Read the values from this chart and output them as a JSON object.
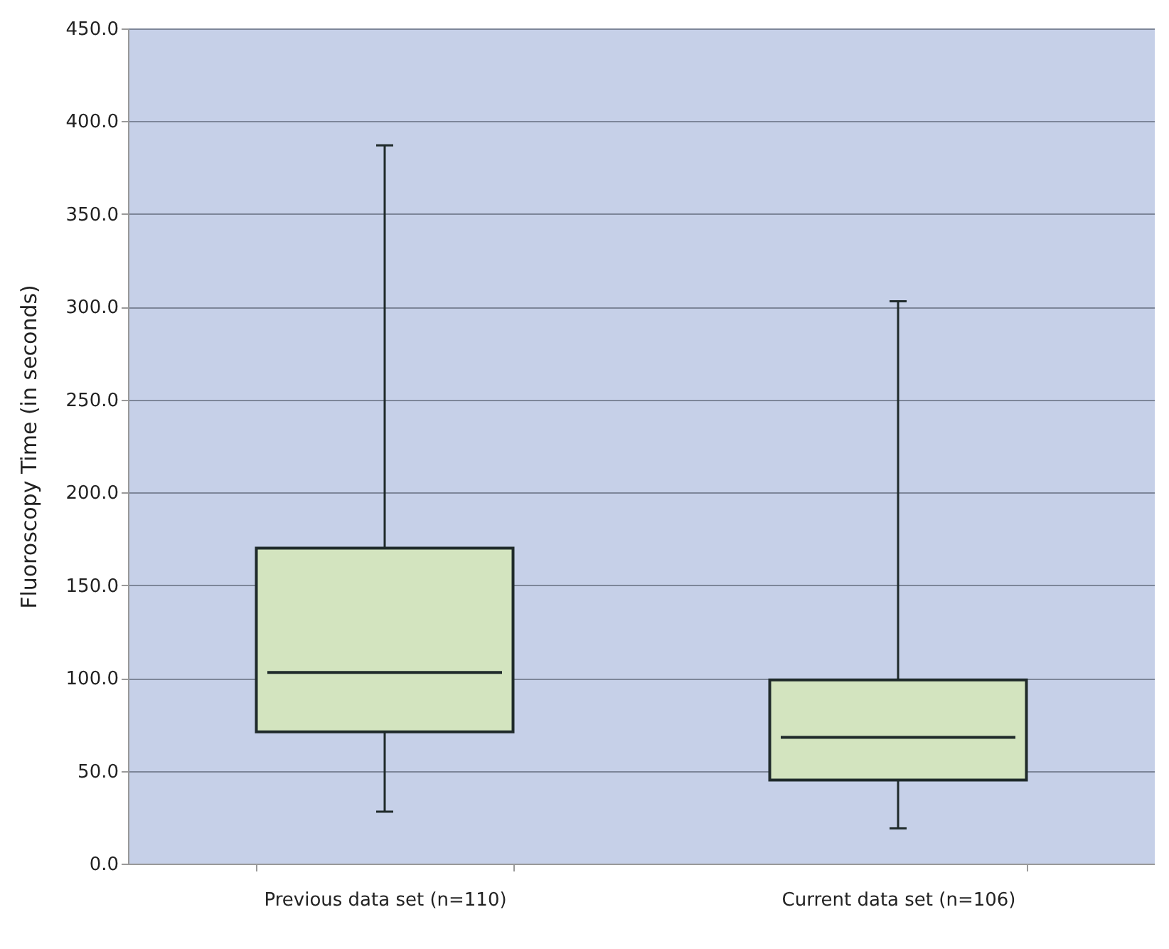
{
  "chart_data": {
    "type": "box",
    "ylabel": "Fluoroscopy Time (in seconds)",
    "categories": [
      "Previous data set (n=110)",
      "Current data set (n=106)"
    ],
    "boxes": [
      {
        "low": 28,
        "q1": 71,
        "median": 103,
        "q3": 170,
        "high": 387
      },
      {
        "low": 19,
        "q1": 45,
        "median": 68,
        "q3": 99,
        "high": 303
      }
    ],
    "color": "#d3e4bf",
    "ylim": [
      0,
      450
    ],
    "yticks": [
      {
        "value": 0,
        "label": "0.0"
      },
      {
        "value": 50,
        "label": "50.0"
      },
      {
        "value": 100,
        "label": "100.0"
      },
      {
        "value": 150,
        "label": "150.0"
      },
      {
        "value": 200,
        "label": "200.0"
      },
      {
        "value": 250,
        "label": "250.0"
      },
      {
        "value": 300,
        "label": "300.0"
      },
      {
        "value": 350,
        "label": "350.0"
      },
      {
        "value": 400,
        "label": "400.0"
      },
      {
        "value": 450,
        "label": "450.0"
      }
    ],
    "grid": "y"
  }
}
